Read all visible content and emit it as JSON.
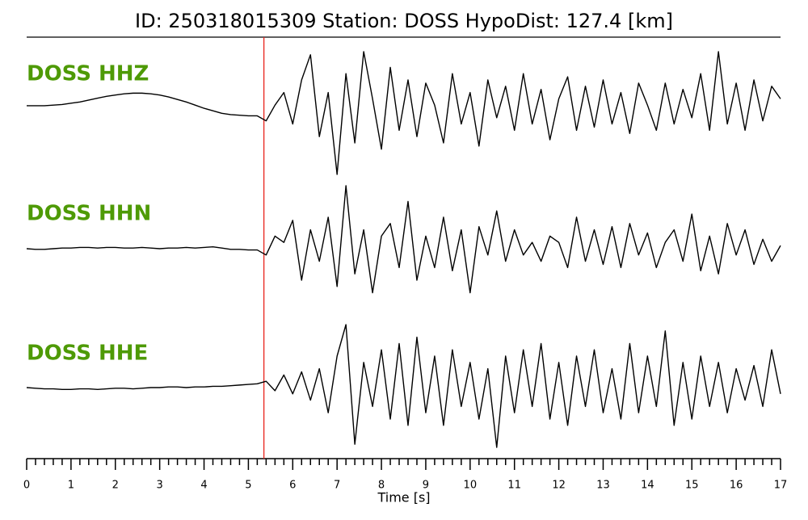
{
  "chart_data": {
    "type": "line",
    "title": "ID: 250318015309   Station: DOSS   HypoDist:   127.4 [km]",
    "xlabel": "Time [s]",
    "xlim": [
      0,
      17
    ],
    "xticks": [
      0,
      1,
      2,
      3,
      4,
      5,
      6,
      7,
      8,
      9,
      10,
      11,
      12,
      13,
      14,
      15,
      16,
      17
    ],
    "minor_ticks_per_major": 5,
    "pick_time": 5.35,
    "pick_color": "#e8231c",
    "label_color": "#4e9a06",
    "x": [
      0,
      0.2,
      0.4,
      0.6,
      0.8,
      1,
      1.2,
      1.4,
      1.6,
      1.8,
      2,
      2.2,
      2.4,
      2.6,
      2.8,
      3,
      3.2,
      3.4,
      3.6,
      3.8,
      4,
      4.2,
      4.4,
      4.6,
      4.8,
      5,
      5.2,
      5.4,
      5.6,
      5.8,
      6,
      6.2,
      6.4,
      6.6,
      6.8,
      7,
      7.2,
      7.4,
      7.6,
      7.8,
      8,
      8.2,
      8.4,
      8.6,
      8.8,
      9,
      9.2,
      9.4,
      9.6,
      9.8,
      10,
      10.2,
      10.4,
      10.6,
      10.8,
      11,
      11.2,
      11.4,
      11.6,
      11.8,
      12,
      12.2,
      12.4,
      12.6,
      12.8,
      13,
      13.2,
      13.4,
      13.6,
      13.8,
      14,
      14.2,
      14.4,
      14.6,
      14.8,
      15,
      15.2,
      15.4,
      15.6,
      15.8,
      16,
      16.2,
      16.4,
      16.6,
      16.8,
      17
    ],
    "series": [
      {
        "name": "DOSS HHZ",
        "color": "#000000",
        "values": [
          0.09,
          0.09,
          0.09,
          0.1,
          0.11,
          0.13,
          0.15,
          0.18,
          0.21,
          0.24,
          0.26,
          0.28,
          0.29,
          0.29,
          0.28,
          0.26,
          0.23,
          0.19,
          0.15,
          0.1,
          0.05,
          0.01,
          -0.03,
          -0.05,
          -0.06,
          -0.07,
          -0.07,
          -0.15,
          0.1,
          0.3,
          -0.2,
          0.5,
          0.9,
          -0.4,
          0.3,
          -1.0,
          0.6,
          -0.5,
          0.95,
          0.2,
          -0.6,
          0.7,
          -0.3,
          0.5,
          -0.4,
          0.45,
          0.1,
          -0.5,
          0.6,
          -0.2,
          0.3,
          -0.55,
          0.5,
          -0.1,
          0.4,
          -0.3,
          0.6,
          -0.2,
          0.35,
          -0.45,
          0.2,
          0.55,
          -0.3,
          0.4,
          -0.25,
          0.5,
          -0.2,
          0.3,
          -0.35,
          0.45,
          0.1,
          -0.3,
          0.45,
          -0.2,
          0.35,
          -0.1,
          0.6,
          -0.3,
          0.95,
          -0.2,
          0.45,
          -0.3,
          0.5,
          -0.15,
          0.4,
          0.2
        ]
      },
      {
        "name": "DOSS HHN",
        "color": "#000000",
        "values": [
          0,
          -0.01,
          -0.01,
          0,
          0.01,
          0.01,
          0.02,
          0.02,
          0.01,
          0.02,
          0.02,
          0.01,
          0.01,
          0.02,
          0.01,
          0,
          0.01,
          0.01,
          0.02,
          0.01,
          0.02,
          0.03,
          0.01,
          -0.01,
          -0.01,
          -0.02,
          -0.02,
          -0.1,
          0.2,
          0.1,
          0.45,
          -0.5,
          0.3,
          -0.2,
          0.5,
          -0.6,
          1.0,
          -0.4,
          0.3,
          -0.7,
          0.2,
          0.4,
          -0.3,
          0.75,
          -0.5,
          0.2,
          -0.3,
          0.5,
          -0.35,
          0.3,
          -0.7,
          0.35,
          -0.1,
          0.6,
          -0.2,
          0.3,
          -0.1,
          0.1,
          -0.2,
          0.2,
          0.1,
          -0.3,
          0.5,
          -0.2,
          0.3,
          -0.25,
          0.35,
          -0.3,
          0.4,
          -0.1,
          0.25,
          -0.3,
          0.1,
          0.3,
          -0.2,
          0.55,
          -0.35,
          0.2,
          -0.4,
          0.4,
          -0.1,
          0.3,
          -0.25,
          0.15,
          -0.2,
          0.05
        ]
      },
      {
        "name": "DOSS HHE",
        "color": "#000000",
        "values": [
          0,
          -0.01,
          -0.02,
          -0.02,
          -0.03,
          -0.03,
          -0.02,
          -0.02,
          -0.03,
          -0.02,
          -0.01,
          -0.01,
          -0.02,
          -0.01,
          0,
          0,
          0.01,
          0.01,
          0,
          0.01,
          0.01,
          0.02,
          0.02,
          0.03,
          0.04,
          0.05,
          0.06,
          0.1,
          -0.05,
          0.2,
          -0.1,
          0.25,
          -0.2,
          0.3,
          -0.4,
          0.5,
          1.0,
          -0.9,
          0.4,
          -0.3,
          0.6,
          -0.5,
          0.7,
          -0.6,
          0.8,
          -0.4,
          0.5,
          -0.6,
          0.6,
          -0.3,
          0.4,
          -0.5,
          0.3,
          -0.95,
          0.5,
          -0.4,
          0.6,
          -0.3,
          0.7,
          -0.5,
          0.4,
          -0.6,
          0.5,
          -0.3,
          0.6,
          -0.4,
          0.3,
          -0.5,
          0.7,
          -0.4,
          0.5,
          -0.3,
          0.9,
          -0.6,
          0.4,
          -0.5,
          0.5,
          -0.3,
          0.4,
          -0.4,
          0.3,
          -0.2,
          0.35,
          -0.3,
          0.6,
          -0.1
        ]
      }
    ]
  }
}
